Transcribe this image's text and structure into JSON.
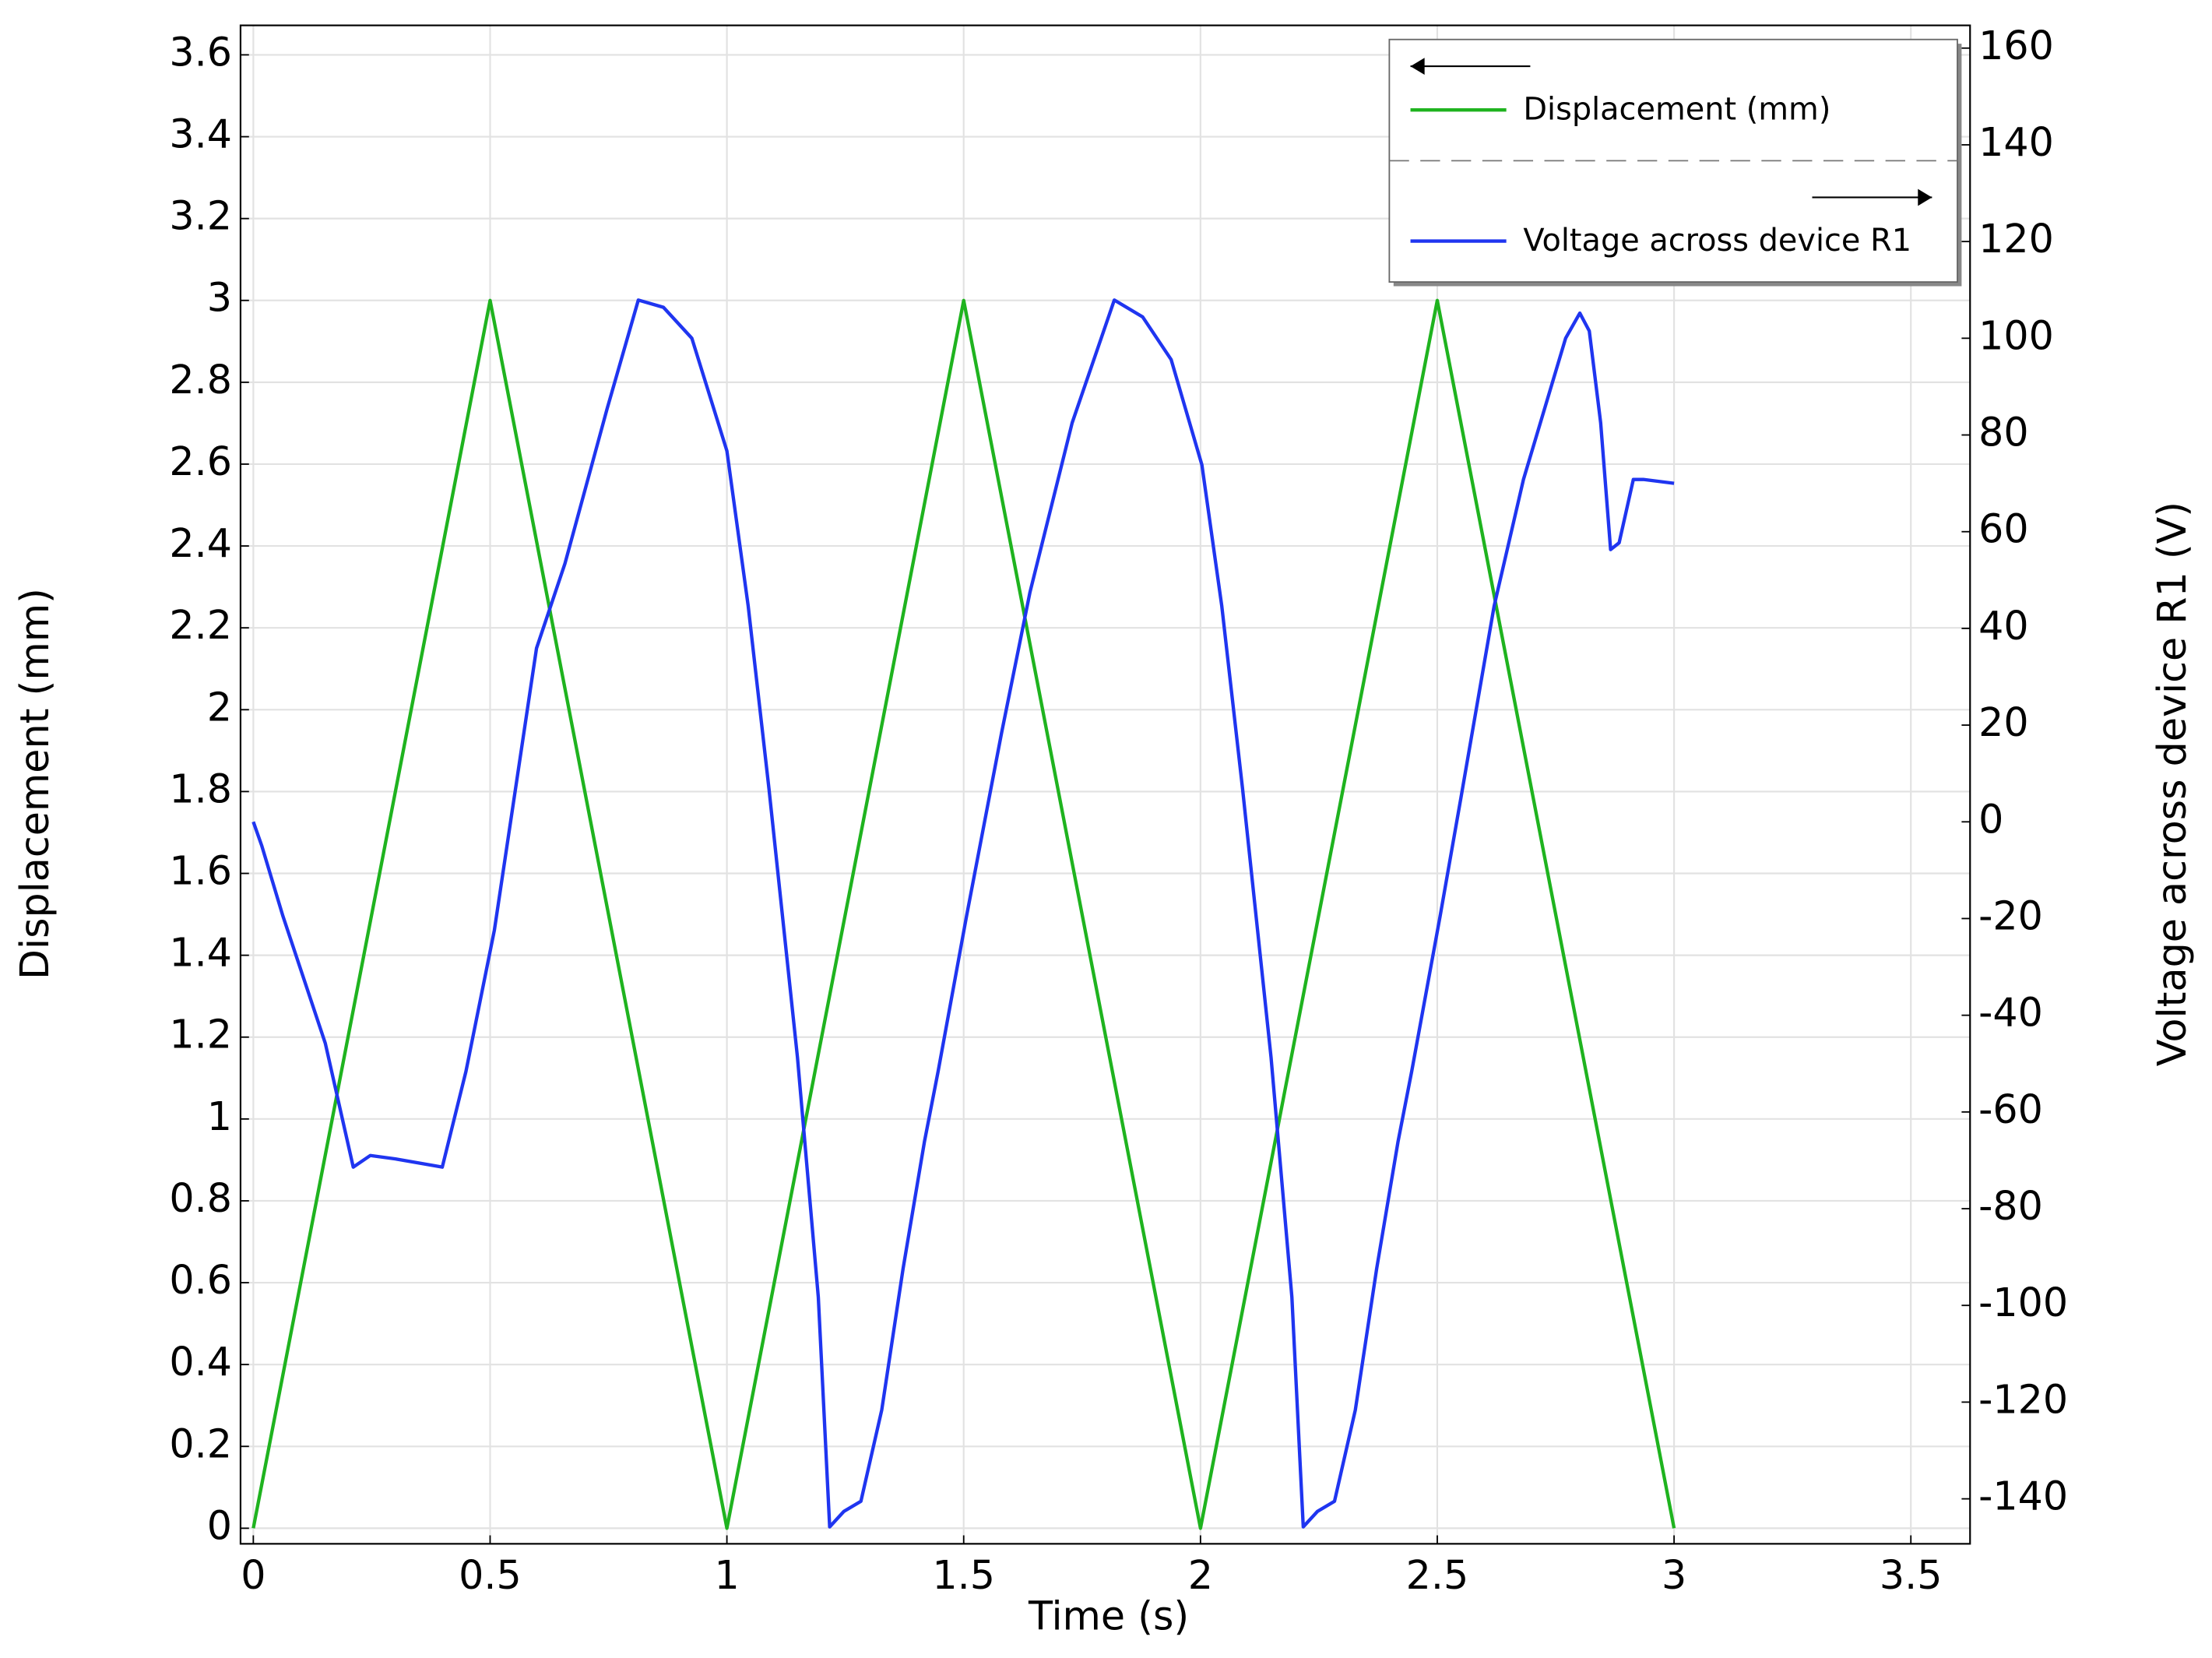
{
  "chart_data": {
    "type": "line",
    "xlabel": "Time (s)",
    "ylabel": "Displacement (mm)",
    "y2label": "Voltage across device R1 (V)",
    "xlim": [
      -0.027,
      3.625
    ],
    "ylim": [
      -0.038,
      3.672
    ],
    "y2lim": [
      -149.3,
      164.7
    ],
    "xticks": [
      0,
      0.5,
      1,
      1.5,
      2,
      2.5,
      3,
      3.5
    ],
    "yticks": [
      0,
      0.2,
      0.4,
      0.6,
      0.8,
      1,
      1.2,
      1.4,
      1.6,
      1.8,
      2,
      2.2,
      2.4,
      2.6,
      2.8,
      3,
      3.2,
      3.4,
      3.6
    ],
    "y2ticks": [
      -140,
      -120,
      -100,
      -80,
      -60,
      -40,
      -20,
      0,
      20,
      40,
      60,
      80,
      100,
      120,
      140,
      160
    ],
    "grid": true,
    "legend": "upper right",
    "series": [
      {
        "name": "Displacement (mm)",
        "color": "#1fb31f",
        "x": [
          0,
          0.5,
          1,
          1.5,
          2,
          2.5,
          3
        ],
        "values": [
          0,
          3,
          0,
          3,
          0,
          3,
          0
        ]
      },
      {
        "name": "Voltage across device R1",
        "color": "#1f35f0",
        "axis": "y2",
        "x": [
          0,
          0.018,
          0.0625,
          0.152,
          0.211,
          0.247,
          0.3,
          0.399,
          0.449,
          0.509,
          0.598,
          0.658,
          0.747,
          0.813,
          0.866,
          0.926,
          1.0,
          1.045,
          1.089,
          1.149,
          1.193,
          1.217,
          1.247,
          1.283,
          1.327,
          1.372,
          1.417,
          1.446,
          1.506,
          1.58,
          1.64,
          1.729,
          1.818,
          1.878,
          1.938,
          2.003,
          2.045,
          2.089,
          2.149,
          2.193,
          2.217,
          2.247,
          2.283,
          2.327,
          2.372,
          2.417,
          2.446,
          2.506,
          2.55,
          2.62,
          2.682,
          2.771,
          2.801,
          2.821,
          2.845,
          2.866,
          2.884,
          2.914,
          2.935,
          3.0
        ],
        "values": [
          0,
          -5,
          -19.5,
          -45.8,
          -71.4,
          -69,
          -69.7,
          -71.4,
          -51.6,
          -22.4,
          35.9,
          53.4,
          85.4,
          107.9,
          106.4,
          100,
          76.7,
          44.6,
          6.7,
          -48.7,
          -98.3,
          -145.8,
          -142.6,
          -140.5,
          -121.6,
          -92.4,
          -66.2,
          -51.6,
          -19.5,
          18.4,
          47.5,
          82.5,
          107.9,
          104.4,
          95.6,
          73.8,
          44.6,
          6.7,
          -48.7,
          -98.3,
          -145.8,
          -142.6,
          -140.5,
          -121.6,
          -92.4,
          -66.2,
          -51.6,
          -19.5,
          5,
          44.6,
          70.8,
          100,
          105.2,
          101.5,
          82.5,
          56.3,
          57.7,
          70.8,
          70.8,
          70
        ]
      }
    ]
  }
}
